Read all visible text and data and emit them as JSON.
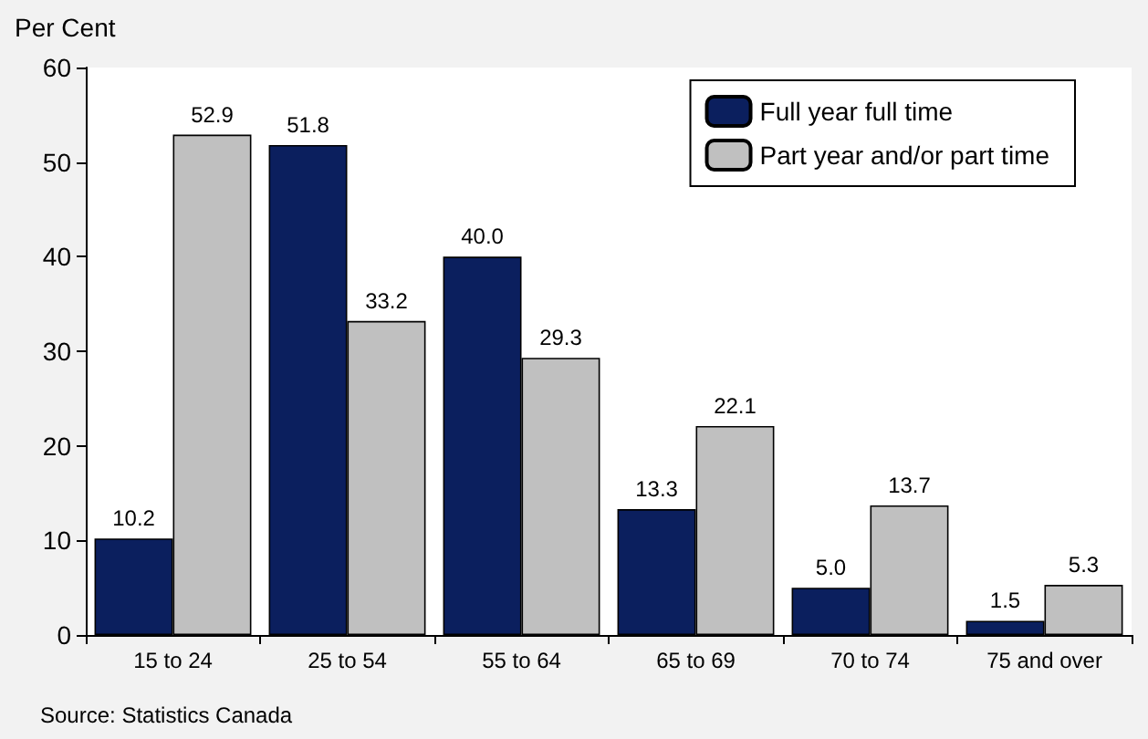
{
  "chart_data": {
    "type": "bar",
    "ylabel": "Per Cent",
    "categories": [
      "15 to 24",
      "25 to 54",
      "55 to 64",
      "65 to 69",
      "70 to 74",
      "75 and over"
    ],
    "series": [
      {
        "name": "Full year full time",
        "color": "#0b1f5e",
        "values": [
          10.2,
          51.8,
          40.0,
          13.3,
          5.0,
          1.5
        ],
        "value_labels": [
          "10.2",
          "51.8",
          "40.0",
          "13.3",
          "5.0",
          "1.5"
        ]
      },
      {
        "name": "Part year and/or part time",
        "color": "#c0c0c0",
        "values": [
          52.9,
          33.2,
          29.3,
          22.1,
          13.7,
          5.3
        ],
        "value_labels": [
          "52.9",
          "33.2",
          "29.3",
          "22.1",
          "13.7",
          "5.3"
        ]
      }
    ],
    "ylim": [
      0,
      60
    ],
    "yticks": [
      0,
      10,
      20,
      30,
      40,
      50,
      60
    ],
    "grid": false,
    "legend": "top right",
    "annotations": [
      "Source: Statistics Canada"
    ]
  }
}
